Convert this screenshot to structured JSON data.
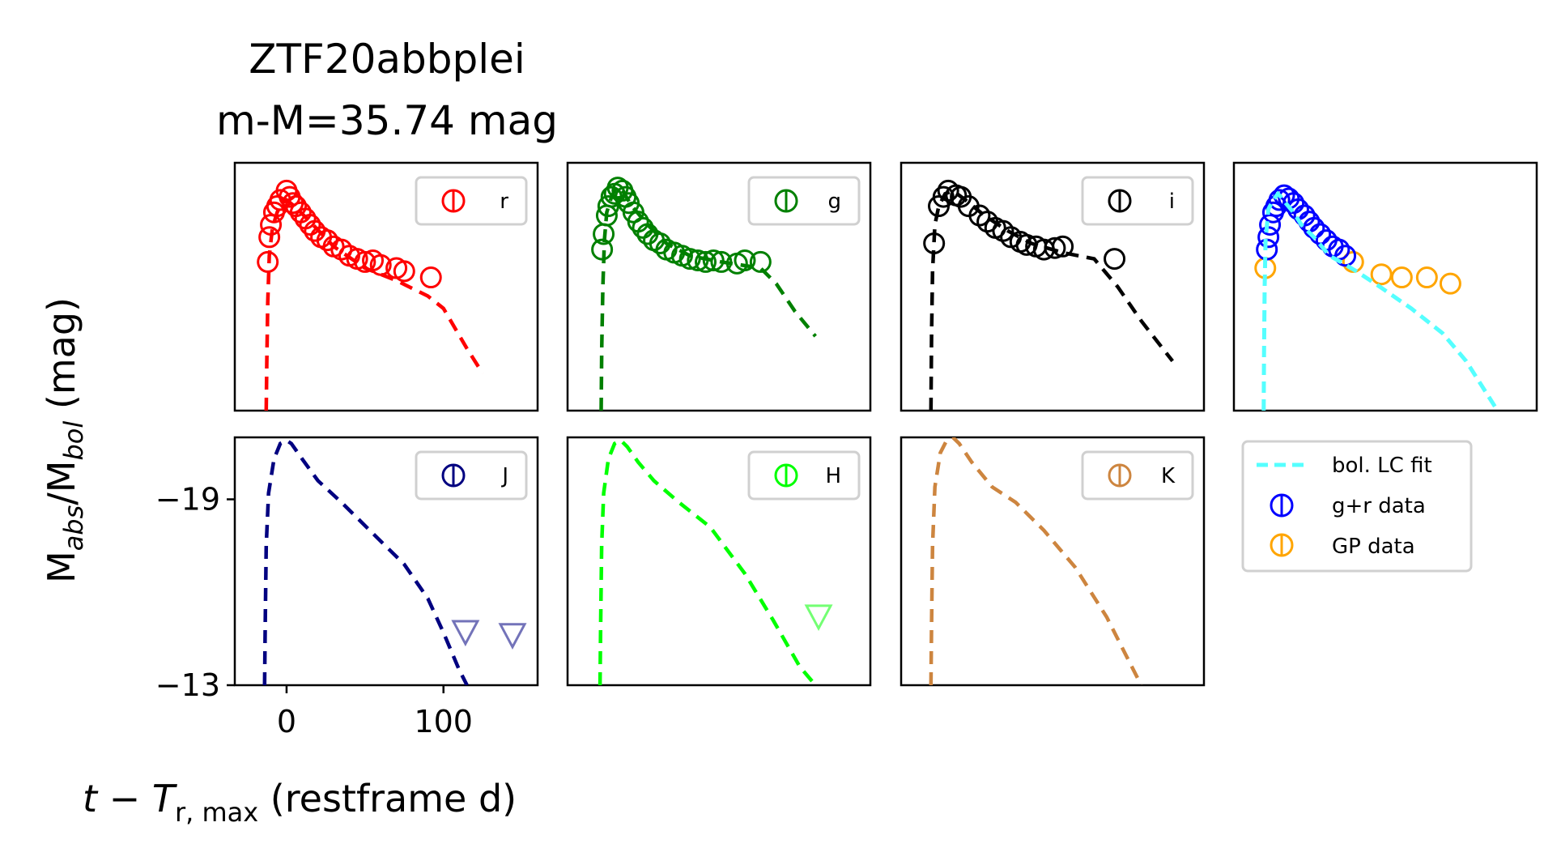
{
  "title_line1": "ZTF20abbplei",
  "title_line2": "m-M=35.74 mag",
  "ylabel": {
    "base1": "M",
    "sub1": "abs",
    "mid": "/M",
    "sub2": "bol",
    "tail": " (mag)"
  },
  "xlabel": {
    "t": "t",
    "minus": " − ",
    "T": "T",
    "sub": "r, max",
    "tail": " (restframe d)"
  },
  "colors": {
    "r": "#ff0000",
    "g": "#008000",
    "i": "#000000",
    "J": "#000080",
    "H": "#00ff00",
    "K": "#cd853f",
    "bol_fit": "#55ffff",
    "gr_data": "#0000ff",
    "gp_data": "#ffa500"
  },
  "chart_data": [
    {
      "type": "scatter",
      "band": "r",
      "legend": "r",
      "xlim": [
        -33,
        160
      ],
      "ylim": [
        -13,
        -21
      ],
      "fit": [
        [
          -13,
          -13
        ],
        [
          -12.6,
          -14.5
        ],
        [
          -12,
          -16.5
        ],
        [
          -11,
          -18
        ],
        [
          -9,
          -18.9
        ],
        [
          -6,
          -19.4
        ],
        [
          -3,
          -19.7
        ],
        [
          0,
          -19.8
        ],
        [
          5,
          -19.6
        ],
        [
          15,
          -19.1
        ],
        [
          30,
          -18.3
        ],
        [
          50,
          -17.6
        ],
        [
          70,
          -17.2
        ],
        [
          90,
          -16.7
        ],
        [
          100,
          -16.3
        ],
        [
          115,
          -15.0
        ],
        [
          125,
          -14.2
        ]
      ],
      "points": [
        [
          -12,
          -17.8
        ],
        [
          -11,
          -18.6
        ],
        [
          -10,
          -19.0
        ],
        [
          -8,
          -19.4
        ],
        [
          -6,
          -19.6
        ],
        [
          -4,
          -19.8
        ],
        [
          0,
          -20.1
        ],
        [
          2,
          -19.9
        ],
        [
          4,
          -19.7
        ],
        [
          6,
          -19.6
        ],
        [
          9,
          -19.4
        ],
        [
          12,
          -19.2
        ],
        [
          15,
          -19.0
        ],
        [
          18,
          -18.8
        ],
        [
          22,
          -18.6
        ],
        [
          26,
          -18.5
        ],
        [
          30,
          -18.3
        ],
        [
          35,
          -18.2
        ],
        [
          40,
          -18.0
        ],
        [
          45,
          -17.9
        ],
        [
          50,
          -17.8
        ],
        [
          55,
          -17.85
        ],
        [
          60,
          -17.7
        ],
        [
          70,
          -17.6
        ],
        [
          75,
          -17.5
        ],
        [
          92,
          -17.3
        ]
      ]
    },
    {
      "type": "scatter",
      "band": "g",
      "legend": "g",
      "xlim": [
        -33,
        160
      ],
      "ylim": [
        -13,
        -21
      ],
      "fit": [
        [
          -11.6,
          -13
        ],
        [
          -11.2,
          -15
        ],
        [
          -10.5,
          -17
        ],
        [
          -9.5,
          -18.5
        ],
        [
          -8,
          -19.4
        ],
        [
          -5,
          -19.9
        ],
        [
          -2,
          -20.2
        ],
        [
          2,
          -20.1
        ],
        [
          8,
          -19.6
        ],
        [
          18,
          -19.0
        ],
        [
          30,
          -18.4
        ],
        [
          45,
          -18.0
        ],
        [
          65,
          -17.8
        ],
        [
          90,
          -17.6
        ],
        [
          100,
          -17.1
        ],
        [
          112,
          -16.2
        ],
        [
          125,
          -15.4
        ]
      ],
      "points": [
        [
          -11,
          -18.2
        ],
        [
          -10,
          -18.7
        ],
        [
          -8,
          -19.3
        ],
        [
          -7,
          -19.6
        ],
        [
          -5,
          -19.9
        ],
        [
          -3,
          -20.0
        ],
        [
          -1,
          -20.2
        ],
        [
          2,
          -20.1
        ],
        [
          4,
          -19.9
        ],
        [
          6,
          -19.7
        ],
        [
          9,
          -19.4
        ],
        [
          12,
          -19.1
        ],
        [
          15,
          -18.9
        ],
        [
          18,
          -18.7
        ],
        [
          22,
          -18.5
        ],
        [
          26,
          -18.4
        ],
        [
          30,
          -18.2
        ],
        [
          35,
          -18.1
        ],
        [
          40,
          -18.0
        ],
        [
          45,
          -17.9
        ],
        [
          50,
          -17.85
        ],
        [
          55,
          -17.8
        ],
        [
          60,
          -17.85
        ],
        [
          65,
          -17.8
        ],
        [
          75,
          -17.75
        ],
        [
          80,
          -17.85
        ],
        [
          90,
          -17.8
        ]
      ]
    },
    {
      "type": "scatter",
      "band": "i",
      "legend": "i",
      "xlim": [
        -33,
        160
      ],
      "ylim": [
        -13,
        -21
      ],
      "fit": [
        [
          -14,
          -13
        ],
        [
          -13.6,
          -15.5
        ],
        [
          -13,
          -17.5
        ],
        [
          -11.5,
          -19.0
        ],
        [
          -9,
          -19.6
        ],
        [
          -5,
          -20.0
        ],
        [
          0,
          -20.1
        ],
        [
          8,
          -19.8
        ],
        [
          20,
          -19.3
        ],
        [
          35,
          -18.8
        ],
        [
          50,
          -18.4
        ],
        [
          70,
          -18.1
        ],
        [
          90,
          -17.9
        ],
        [
          105,
          -17.0
        ],
        [
          120,
          -15.9
        ],
        [
          140,
          -14.6
        ]
      ],
      "points": [
        [
          -12,
          -18.4
        ],
        [
          -9,
          -19.6
        ],
        [
          -6,
          -19.9
        ],
        [
          -3,
          -20.1
        ],
        [
          2,
          -19.95
        ],
        [
          5,
          -19.9
        ],
        [
          10,
          -19.6
        ],
        [
          17,
          -19.3
        ],
        [
          22,
          -19.1
        ],
        [
          27,
          -18.9
        ],
        [
          32,
          -18.8
        ],
        [
          37,
          -18.6
        ],
        [
          43,
          -18.45
        ],
        [
          47,
          -18.35
        ],
        [
          53,
          -18.3
        ],
        [
          58,
          -18.2
        ],
        [
          65,
          -18.25
        ],
        [
          70,
          -18.3
        ],
        [
          103,
          -17.9
        ]
      ]
    },
    {
      "type": "scatter",
      "band": "bol",
      "legend": "",
      "xlim": [
        -33,
        160
      ],
      "ylim": [
        -13,
        -21
      ],
      "fit": [
        [
          -14,
          -13
        ],
        [
          -13.8,
          -14.8
        ],
        [
          -13.4,
          -17.0
        ],
        [
          -12.8,
          -18.5
        ],
        [
          -11,
          -19.5
        ],
        [
          -8,
          -19.8
        ],
        [
          -5,
          -20.0
        ],
        [
          -3,
          -19.9
        ],
        [
          0,
          -19.7
        ],
        [
          5,
          -19.4
        ],
        [
          10,
          -19.0
        ],
        [
          18,
          -18.6
        ],
        [
          28,
          -18.0
        ],
        [
          35,
          -17.8
        ],
        [
          45,
          -17.5
        ],
        [
          60,
          -17.0
        ],
        [
          80,
          -16.3
        ],
        [
          100,
          -15.5
        ],
        [
          115,
          -14.6
        ],
        [
          135,
          -13.0
        ]
      ],
      "gr_points": [
        [
          -12,
          -18.2
        ],
        [
          -11,
          -18.6
        ],
        [
          -10,
          -19.0
        ],
        [
          -8,
          -19.4
        ],
        [
          -6,
          -19.6
        ],
        [
          -4,
          -19.8
        ],
        [
          -1,
          -19.95
        ],
        [
          2,
          -19.85
        ],
        [
          5,
          -19.7
        ],
        [
          8,
          -19.5
        ],
        [
          12,
          -19.3
        ],
        [
          15,
          -19.1
        ],
        [
          18,
          -18.9
        ],
        [
          22,
          -18.7
        ],
        [
          26,
          -18.5
        ],
        [
          30,
          -18.3
        ],
        [
          34,
          -18.2
        ],
        [
          38,
          -18.0
        ]
      ],
      "gp_points": [
        [
          -13,
          -17.6
        ],
        [
          43,
          -17.8
        ],
        [
          61,
          -17.4
        ],
        [
          74,
          -17.3
        ],
        [
          90,
          -17.3
        ],
        [
          105,
          -17.1
        ]
      ]
    },
    {
      "type": "scatter",
      "band": "J",
      "legend": "J",
      "xlim": [
        -33,
        160
      ],
      "ylim": [
        -13,
        -21
      ],
      "fit": [
        [
          -14,
          -13
        ],
        [
          -13.6,
          -15
        ],
        [
          -13,
          -17.5
        ],
        [
          -11.5,
          -19.2
        ],
        [
          -8,
          -20.3
        ],
        [
          -4,
          -20.8
        ],
        [
          0,
          -20.9
        ],
        [
          3,
          -20.8
        ],
        [
          10,
          -20.3
        ],
        [
          20,
          -19.6
        ],
        [
          35,
          -18.9
        ],
        [
          55,
          -17.9
        ],
        [
          75,
          -16.9
        ],
        [
          90,
          -15.8
        ],
        [
          100,
          -14.7
        ],
        [
          110,
          -13.5
        ],
        [
          115,
          -13.0
        ]
      ],
      "upper_limits": [
        [
          114,
          -14.7
        ],
        [
          144,
          -14.6
        ]
      ]
    },
    {
      "type": "scatter",
      "band": "H",
      "legend": "H",
      "xlim": [
        -33,
        160
      ],
      "ylim": [
        -13,
        -21
      ],
      "fit": [
        [
          -12.3,
          -13
        ],
        [
          -11.9,
          -15
        ],
        [
          -11.3,
          -17.5
        ],
        [
          -10,
          -19.2
        ],
        [
          -7,
          -20.3
        ],
        [
          -3,
          -20.8
        ],
        [
          1,
          -20.9
        ],
        [
          5,
          -20.7
        ],
        [
          12,
          -20.2
        ],
        [
          22,
          -19.6
        ],
        [
          38,
          -18.9
        ],
        [
          58,
          -18.1
        ],
        [
          80,
          -16.6
        ],
        [
          98,
          -15.1
        ],
        [
          115,
          -13.6
        ],
        [
          125,
          -13.0
        ]
      ],
      "upper_limits": [
        [
          127,
          -15.2
        ]
      ]
    },
    {
      "type": "scatter",
      "band": "K",
      "legend": "K",
      "xlim": [
        -33,
        160
      ],
      "ylim": [
        -13,
        -21
      ],
      "fit": [
        [
          -14,
          -13
        ],
        [
          -13.6,
          -15
        ],
        [
          -13,
          -17.5
        ],
        [
          -11.5,
          -19.4
        ],
        [
          -8,
          -20.5
        ],
        [
          -4,
          -20.9
        ],
        [
          0,
          -21.0
        ],
        [
          4,
          -20.8
        ],
        [
          12,
          -20.2
        ],
        [
          25,
          -19.4
        ],
        [
          40,
          -18.9
        ],
        [
          58,
          -18.0
        ],
        [
          78,
          -16.8
        ],
        [
          98,
          -15.2
        ],
        [
          108,
          -14.2
        ],
        [
          120,
          -13.0
        ]
      ],
      "upper_limits": []
    }
  ],
  "legend_bol": {
    "fit": "bol. LC fit",
    "gr": "g+r data",
    "gp": "GP data"
  },
  "yticks": [
    {
      "value": -19,
      "label": "−19"
    },
    {
      "value": -13,
      "label": "−13"
    }
  ],
  "xticks": [
    {
      "value": 0,
      "label": "0"
    },
    {
      "value": 100,
      "label": "100"
    }
  ]
}
